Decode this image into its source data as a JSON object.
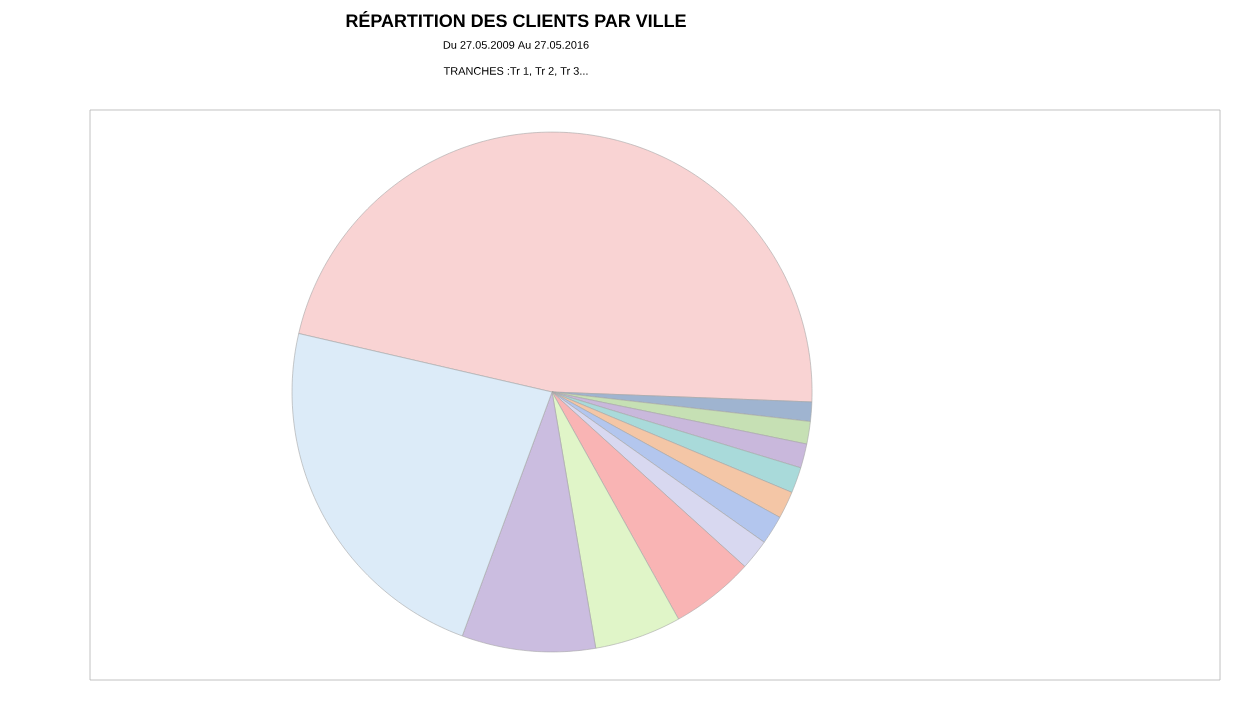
{
  "chart_data": {
    "type": "pie",
    "title": "RÉPARTITION DES CLIENTS PAR VILLE",
    "subtitle": "Du 27.05.2009 Au 27.05.2016",
    "annotations": [
      "TRANCHES :Tr 1, Tr 2, Tr 3..."
    ],
    "categories": [
      null,
      null,
      null,
      null,
      null,
      null,
      null,
      null,
      null,
      null,
      null,
      null
    ],
    "values": [
      47,
      1.2,
      1.4,
      1.5,
      1.6,
      1.7,
      1.8,
      1.9,
      5.2,
      5.4,
      8.3,
      23
    ],
    "colors": [
      "#f9d3d3",
      "#9fb4d0",
      "#c6e0b4",
      "#c9b8dc",
      "#a9dada",
      "#f4c6a6",
      "#b3c6ee",
      "#d8d8f0",
      "#f9b4b4",
      "#e0f5c8",
      "#cbbde0",
      "#dcebf8"
    ]
  }
}
